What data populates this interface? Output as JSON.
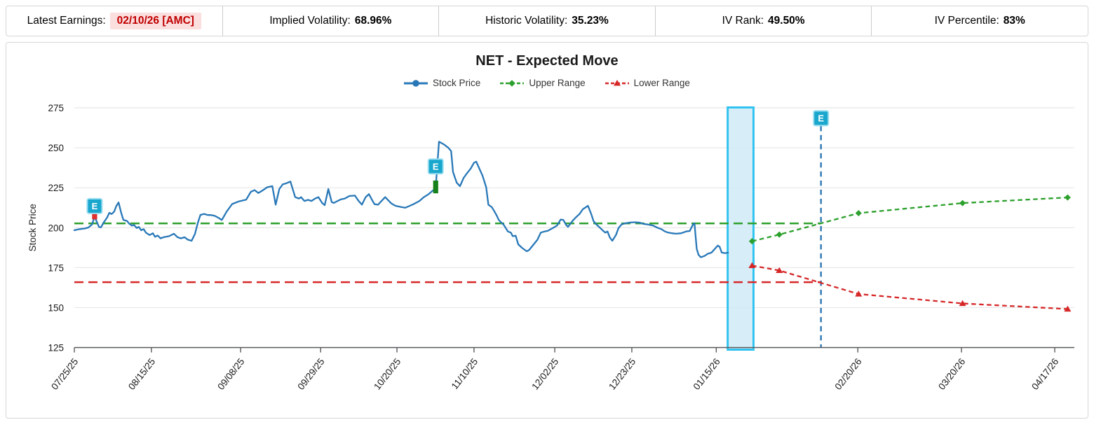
{
  "header": {
    "items": [
      {
        "label": "Latest Earnings:",
        "value": "02/10/26 [AMC]",
        "highlight": true
      },
      {
        "label": "Implied Volatility:",
        "value": "68.96%",
        "highlight": false
      },
      {
        "label": "Historic Volatility:",
        "value": "35.23%",
        "highlight": false
      },
      {
        "label": "IV Rank:",
        "value": "49.50%",
        "highlight": false
      },
      {
        "label": "IV Percentile:",
        "value": "83%",
        "highlight": false
      }
    ]
  },
  "chart_data": {
    "type": "line",
    "title": "NET - Expected Move",
    "xlabel": "",
    "ylabel": "Stock Price",
    "ylim": [
      125,
      275
    ],
    "yticks": [
      125,
      150,
      175,
      200,
      225,
      250,
      275
    ],
    "grid": "horizontal",
    "legend_position": "top-center",
    "legend": [
      {
        "name": "Stock Price",
        "marker": "circle"
      },
      {
        "name": "Upper Range",
        "marker": "diamond"
      },
      {
        "name": "Lower Range",
        "marker": "triangle"
      }
    ],
    "xticks": [
      {
        "label": "07/25/25",
        "day": 0
      },
      {
        "label": "08/15/25",
        "day": 20.9
      },
      {
        "label": "09/08/25",
        "day": 45.1
      },
      {
        "label": "09/29/25",
        "day": 66.8
      },
      {
        "label": "10/20/25",
        "day": 87.5
      },
      {
        "label": "11/10/25",
        "day": 108.4
      },
      {
        "label": "12/02/25",
        "day": 130.3
      },
      {
        "label": "12/23/25",
        "day": 151.2
      },
      {
        "label": "01/15/26",
        "day": 174.1
      },
      {
        "label": "02/20/26",
        "day": 212.5
      },
      {
        "label": "03/20/26",
        "day": 240.6
      },
      {
        "label": "04/17/26",
        "day": 265.9
      }
    ],
    "series": {
      "stock_price": [
        [
          0,
          198.4
        ],
        [
          1.5,
          199.1
        ],
        [
          2.9,
          199.5
        ],
        [
          3.8,
          200.1
        ],
        [
          4.8,
          202.0
        ],
        [
          5.5,
          206.9
        ],
        [
          6.7,
          200.4
        ],
        [
          7.2,
          200.2
        ],
        [
          8.0,
          203.4
        ],
        [
          8.9,
          206.4
        ],
        [
          9.5,
          209.3
        ],
        [
          10.1,
          208.5
        ],
        [
          10.8,
          210.0
        ],
        [
          11.4,
          213.6
        ],
        [
          12.0,
          215.8
        ],
        [
          12.7,
          209.3
        ],
        [
          13.3,
          204.9
        ],
        [
          14.3,
          204.2
        ],
        [
          14.8,
          202.7
        ],
        [
          15.6,
          201.3
        ],
        [
          16.2,
          201.7
        ],
        [
          16.9,
          199.8
        ],
        [
          17.5,
          200.5
        ],
        [
          18.1,
          198.4
        ],
        [
          18.8,
          199.1
        ],
        [
          19.4,
          196.9
        ],
        [
          20.4,
          195.4
        ],
        [
          21.3,
          196.5
        ],
        [
          21.9,
          194.3
        ],
        [
          22.6,
          195.1
        ],
        [
          23.4,
          193.3
        ],
        [
          24.2,
          194.0
        ],
        [
          25.7,
          194.7
        ],
        [
          27.0,
          196.2
        ],
        [
          28.0,
          194.0
        ],
        [
          28.9,
          193.3
        ],
        [
          29.9,
          194.0
        ],
        [
          30.8,
          192.5
        ],
        [
          31.8,
          191.8
        ],
        [
          32.7,
          196.0
        ],
        [
          33.5,
          203.0
        ],
        [
          34.2,
          208.0
        ],
        [
          35.2,
          208.6
        ],
        [
          36.2,
          207.9
        ],
        [
          37.1,
          207.9
        ],
        [
          38.1,
          207.4
        ],
        [
          39.2,
          206.0
        ],
        [
          40.0,
          204.8
        ],
        [
          41.3,
          210.0
        ],
        [
          42.8,
          214.8
        ],
        [
          44.7,
          216.5
        ],
        [
          46.6,
          217.5
        ],
        [
          47.9,
          222.5
        ],
        [
          48.9,
          223.5
        ],
        [
          49.9,
          221.7
        ],
        [
          51.0,
          223.2
        ],
        [
          52.3,
          225.3
        ],
        [
          53.7,
          226.0
        ],
        [
          54.6,
          214.4
        ],
        [
          55.6,
          224.2
        ],
        [
          56.5,
          227.1
        ],
        [
          57.5,
          227.8
        ],
        [
          58.6,
          228.9
        ],
        [
          59.9,
          219.1
        ],
        [
          60.9,
          218.2
        ],
        [
          61.5,
          219.1
        ],
        [
          62.4,
          216.7
        ],
        [
          63.4,
          217.4
        ],
        [
          64.3,
          216.7
        ],
        [
          65.3,
          218.2
        ],
        [
          66.2,
          219.1
        ],
        [
          67.2,
          215.5
        ],
        [
          67.9,
          214.1
        ],
        [
          68.9,
          224.2
        ],
        [
          69.8,
          216.0
        ],
        [
          70.4,
          215.5
        ],
        [
          71.4,
          216.7
        ],
        [
          72.3,
          217.7
        ],
        [
          73.3,
          218.2
        ],
        [
          74.6,
          219.8
        ],
        [
          76.1,
          220.1
        ],
        [
          77.1,
          216.7
        ],
        [
          78.0,
          214.4
        ],
        [
          79.0,
          219.1
        ],
        [
          79.9,
          221.0
        ],
        [
          80.9,
          216.7
        ],
        [
          81.4,
          214.7
        ],
        [
          82.4,
          214.4
        ],
        [
          83.3,
          216.7
        ],
        [
          84.3,
          219.1
        ],
        [
          86.0,
          215.1
        ],
        [
          87.1,
          213.7
        ],
        [
          88.5,
          213.0
        ],
        [
          89.8,
          212.5
        ],
        [
          91.0,
          213.7
        ],
        [
          92.3,
          215.1
        ],
        [
          93.6,
          216.7
        ],
        [
          94.8,
          219.1
        ],
        [
          96.1,
          221.0
        ],
        [
          97.0,
          222.8
        ],
        [
          98.0,
          224.5
        ],
        [
          98.9,
          253.8
        ],
        [
          100.3,
          252.0
        ],
        [
          101.4,
          250.1
        ],
        [
          102.2,
          247.9
        ],
        [
          102.7,
          234.8
        ],
        [
          103.7,
          228.2
        ],
        [
          104.6,
          226.0
        ],
        [
          105.6,
          231.2
        ],
        [
          106.5,
          234.0
        ],
        [
          107.5,
          237.0
        ],
        [
          108.4,
          240.6
        ],
        [
          109.0,
          241.3
        ],
        [
          110.0,
          236.2
        ],
        [
          110.7,
          232.6
        ],
        [
          111.7,
          225.3
        ],
        [
          112.3,
          214.4
        ],
        [
          113.2,
          212.9
        ],
        [
          113.8,
          210.7
        ],
        [
          114.5,
          207.8
        ],
        [
          115.1,
          204.9
        ],
        [
          115.7,
          203.4
        ],
        [
          116.4,
          202.0
        ],
        [
          117.0,
          199.8
        ],
        [
          117.6,
          197.6
        ],
        [
          118.4,
          196.9
        ],
        [
          118.9,
          194.7
        ],
        [
          119.7,
          195.0
        ],
        [
          120.4,
          189.6
        ],
        [
          121.4,
          187.4
        ],
        [
          122.7,
          185.2
        ],
        [
          123.3,
          185.9
        ],
        [
          124.6,
          189.6
        ],
        [
          125.6,
          192.5
        ],
        [
          126.5,
          196.9
        ],
        [
          127.5,
          197.6
        ],
        [
          128.4,
          198.0
        ],
        [
          129.8,
          199.8
        ],
        [
          130.9,
          201.3
        ],
        [
          131.9,
          205.1
        ],
        [
          132.6,
          204.9
        ],
        [
          133.4,
          201.7
        ],
        [
          133.9,
          200.5
        ],
        [
          135.1,
          204.2
        ],
        [
          136.0,
          206.4
        ],
        [
          137.0,
          208.5
        ],
        [
          137.9,
          211.5
        ],
        [
          139.3,
          213.7
        ],
        [
          140.2,
          208.5
        ],
        [
          140.8,
          204.2
        ],
        [
          141.6,
          202.0
        ],
        [
          142.3,
          200.5
        ],
        [
          143.3,
          198.3
        ],
        [
          144.0,
          196.9
        ],
        [
          144.6,
          197.6
        ],
        [
          145.2,
          194.0
        ],
        [
          145.9,
          191.8
        ],
        [
          146.9,
          195.4
        ],
        [
          147.6,
          199.8
        ],
        [
          148.4,
          202.0
        ],
        [
          149.3,
          202.7
        ],
        [
          150.7,
          203.2
        ],
        [
          152.0,
          203.4
        ],
        [
          153.2,
          203.2
        ],
        [
          154.5,
          202.3
        ],
        [
          155.6,
          202.0
        ],
        [
          157.0,
          201.3
        ],
        [
          158.3,
          199.8
        ],
        [
          159.2,
          199.1
        ],
        [
          160.2,
          197.6
        ],
        [
          161.1,
          196.9
        ],
        [
          162.1,
          196.5
        ],
        [
          163.2,
          196.2
        ],
        [
          164.6,
          196.5
        ],
        [
          165.9,
          197.6
        ],
        [
          166.9,
          197.9
        ],
        [
          167.8,
          202.0
        ],
        [
          168.2,
          202.7
        ],
        [
          168.8,
          186.7
        ],
        [
          169.3,
          183.0
        ],
        [
          169.9,
          181.5
        ],
        [
          170.9,
          182.3
        ],
        [
          171.8,
          183.7
        ],
        [
          172.8,
          184.4
        ],
        [
          173.7,
          186.7
        ],
        [
          174.5,
          188.8
        ],
        [
          175.0,
          188.1
        ],
        [
          175.6,
          184.4
        ],
        [
          176.6,
          184.1
        ],
        [
          177.3,
          184.4
        ]
      ],
      "upper_range_forecast": [
        [
          183.8,
          191.5
        ],
        [
          191.2,
          195.7
        ],
        [
          212.7,
          209.1
        ],
        [
          240.9,
          215.4
        ],
        [
          269.4,
          218.9
        ]
      ],
      "lower_range_forecast": [
        [
          183.8,
          176.3
        ],
        [
          191.2,
          173.2
        ],
        [
          212.7,
          158.5
        ],
        [
          240.9,
          152.6
        ],
        [
          269.4,
          149.1
        ]
      ],
      "upper_range_current": {
        "price": 202.7,
        "from_day": 0,
        "to_day": 202.5
      },
      "lower_range_current": {
        "price": 165.9,
        "from_day": 0,
        "to_day": 202.5
      }
    },
    "annotations": {
      "earnings_markers": [
        {
          "id": "past-earnings-1",
          "day": 5.5,
          "badge_price": 213.5,
          "move_bar": {
            "from": 205.2,
            "to": 208.8,
            "direction": "down"
          }
        },
        {
          "id": "past-earnings-2",
          "day": 98.0,
          "badge_price": 238.3,
          "move_bar": {
            "from": 221.5,
            "to": 229.5,
            "direction": "up"
          }
        },
        {
          "id": "upcoming-earnings",
          "day": 202.5,
          "badge_price": 268.5,
          "vline": true
        }
      ],
      "current_week_band": {
        "from_day": 177.2,
        "to_day": 184.2
      }
    },
    "colors": {
      "stock_price": "#2878b8",
      "upper_range": "#2ca02c",
      "lower_range": "#d62728",
      "earnings_badge": "#1aa7cd",
      "earnings_badge_border": "#9adef0",
      "earnings_vline": "#2d77b3",
      "current_band_border": "#31c3ef",
      "current_band_fill": "#cdeaf7",
      "positive_move_bar": "#15801c",
      "negative_move_bar": "#e03030",
      "grid": "#e7e7e7",
      "axis": "#58595b",
      "tick_text": "#1a1a1a",
      "highlight_chip_bg": "#fbdede",
      "highlight_chip_text": "#c00000"
    }
  }
}
